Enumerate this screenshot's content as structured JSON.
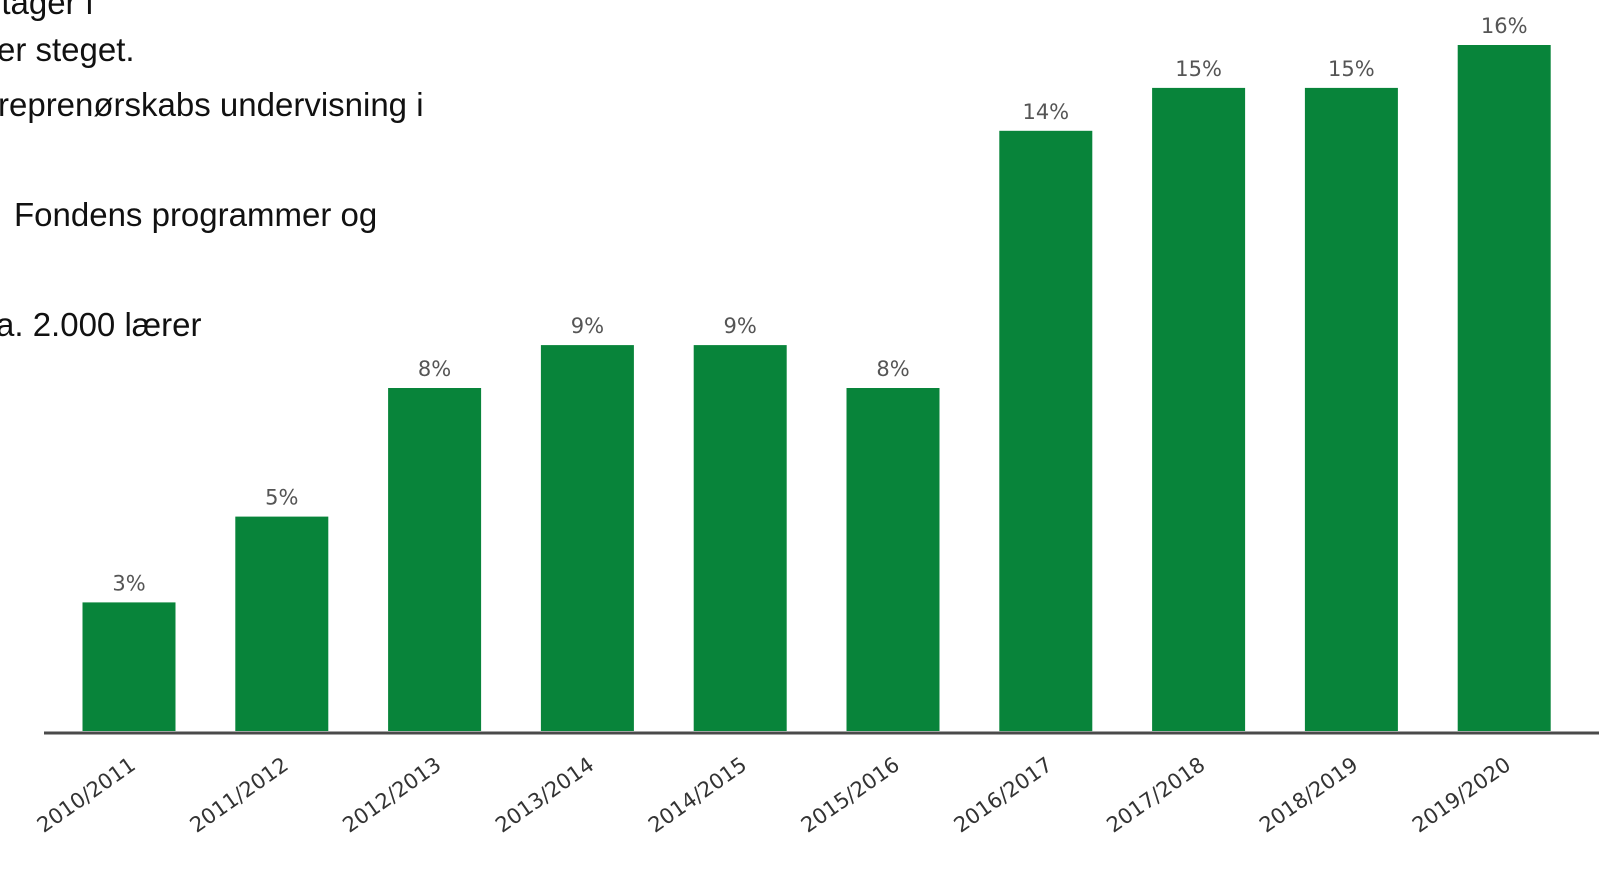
{
  "text_fragments": [
    "itager i",
    "er steget.",
    "reprenørskabs undervisning i",
    "Fondens programmer og",
    "a. 2.000 lærer"
  ],
  "chart_data": {
    "type": "bar",
    "categories": [
      "2010/2011",
      "2011/2012",
      "2012/2013",
      "2013/2014",
      "2014/2015",
      "2015/2016",
      "2016/2017",
      "2017/2018",
      "2018/2019",
      "2019/2020"
    ],
    "values": [
      3,
      5,
      8,
      9,
      9,
      8,
      14,
      15,
      15,
      16
    ],
    "value_labels": [
      "3%",
      "5%",
      "8%",
      "9%",
      "9%",
      "8%",
      "14%",
      "15%",
      "15%",
      "16%"
    ],
    "unit": "%",
    "ylim": [
      0,
      16
    ],
    "grid": false,
    "legend": "none",
    "colors": {
      "bar": "#08843a",
      "axis": "#4a4a4a",
      "label": "#555555"
    }
  }
}
